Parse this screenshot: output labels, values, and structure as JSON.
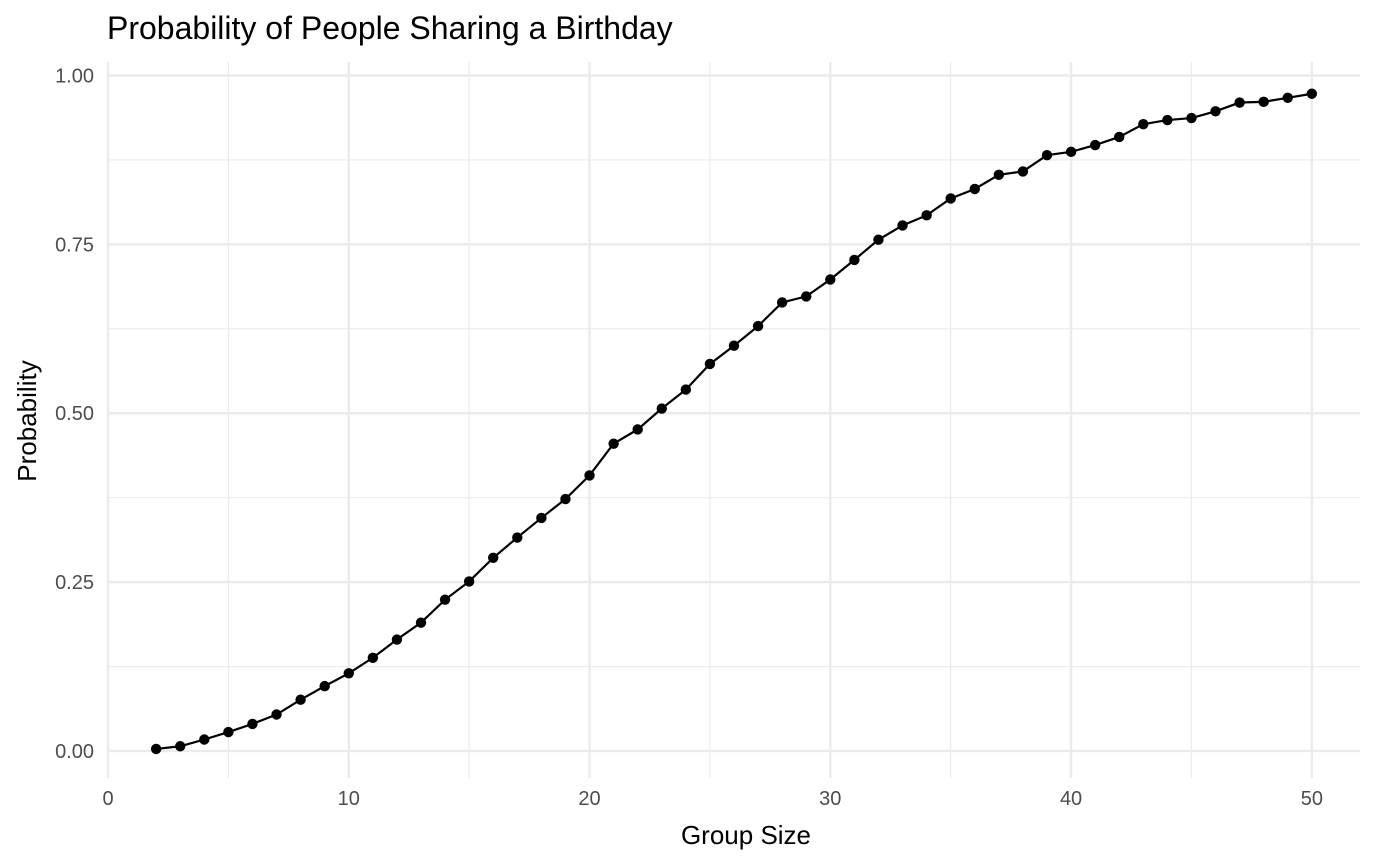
{
  "chart_data": {
    "type": "line",
    "title": "Probability of People Sharing a Birthday",
    "xlabel": "Group Size",
    "ylabel": "Probability",
    "xlim": [
      0,
      52
    ],
    "ylim": [
      -0.04,
      1.02
    ],
    "x_ticks": [
      0,
      10,
      20,
      30,
      40,
      50
    ],
    "x_tick_labels": [
      "0",
      "10",
      "20",
      "30",
      "40",
      "50"
    ],
    "y_ticks": [
      0,
      0.25,
      0.5,
      0.75,
      1.0
    ],
    "y_tick_labels": [
      "0.00",
      "0.25",
      "0.50",
      "0.75",
      "1.00"
    ],
    "grid": true,
    "legend": "none",
    "series": [
      {
        "color": "#000000",
        "marker": "point",
        "x": [
          2,
          3,
          4,
          5,
          6,
          7,
          8,
          9,
          10,
          11,
          12,
          13,
          14,
          15,
          16,
          17,
          18,
          19,
          20,
          21,
          22,
          23,
          24,
          25,
          26,
          27,
          28,
          29,
          30,
          31,
          32,
          33,
          34,
          35,
          36,
          37,
          38,
          39,
          40,
          41,
          42,
          43,
          44,
          45,
          46,
          47,
          48,
          49,
          50
        ],
        "values": [
          0.003,
          0.007,
          0.017,
          0.028,
          0.04,
          0.054,
          0.076,
          0.096,
          0.115,
          0.138,
          0.165,
          0.19,
          0.224,
          0.251,
          0.286,
          0.316,
          0.345,
          0.373,
          0.408,
          0.455,
          0.476,
          0.507,
          0.535,
          0.573,
          0.6,
          0.629,
          0.664,
          0.673,
          0.698,
          0.727,
          0.757,
          0.778,
          0.793,
          0.818,
          0.832,
          0.853,
          0.858,
          0.882,
          0.887,
          0.897,
          0.909,
          0.928,
          0.934,
          0.937,
          0.947,
          0.96,
          0.961,
          0.967,
          0.973
        ]
      }
    ]
  }
}
